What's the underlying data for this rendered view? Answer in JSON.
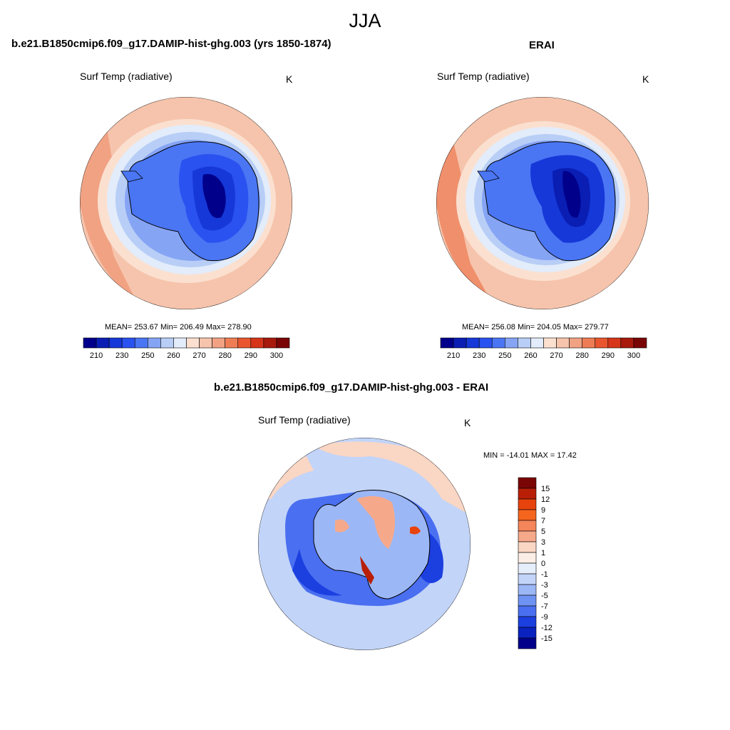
{
  "season": "JJA",
  "panels": {
    "model": {
      "title": "b.e21.B1850cmip6.f09_g17.DAMIP-hist-ghg.003 (yrs 1850-1874)",
      "variable": "Surf Temp (radiative)",
      "units": "K",
      "stats": "MEAN= 253.67  Min= 206.49  Max= 278.90"
    },
    "obs": {
      "title": "ERAI",
      "variable": "Surf Temp (radiative)",
      "units": "K",
      "stats": "MEAN= 256.08  Min= 204.05  Max= 279.77"
    },
    "diff": {
      "title": "b.e21.B1850cmip6.f09_g17.DAMIP-hist-ghg.003 - ERAI",
      "variable": "Surf Temp (radiative)",
      "units": "K",
      "stats": "MIN = -14.01 MAX =  17.42"
    }
  },
  "colorbar_abs": {
    "labels": [
      "210",
      "230",
      "250",
      "260",
      "270",
      "280",
      "290",
      "300"
    ],
    "colors": [
      "#00008b",
      "#0a1eb4",
      "#1638d8",
      "#2a52f0",
      "#4a76f4",
      "#86a4f4",
      "#b8cef6",
      "#e2ecfa",
      "#fbe0d0",
      "#f6c4ac",
      "#f1a283",
      "#ee7d55",
      "#e9552f",
      "#d6351a",
      "#a81a0c",
      "#7a0505"
    ]
  },
  "colorbar_diff": {
    "labels": [
      "15",
      "12",
      "9",
      "7",
      "5",
      "3",
      "1",
      "0",
      "-1",
      "-3",
      "-5",
      "-7",
      "-9",
      "-12",
      "-15"
    ],
    "colors": [
      "#7a0505",
      "#b81f06",
      "#e8430d",
      "#f5651e",
      "#f5855a",
      "#f6a98a",
      "#fad6c4",
      "#fbeee6",
      "#e6eefb",
      "#c2d4f8",
      "#9cb7f6",
      "#6e93f2",
      "#4a6ff0",
      "#1c3fe0",
      "#0a22bf",
      "#00008b"
    ]
  }
}
